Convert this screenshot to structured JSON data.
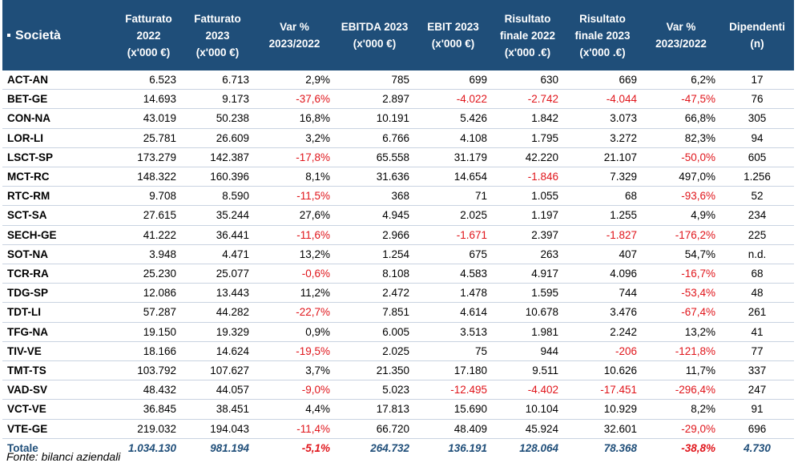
{
  "header": {
    "col_name": "Società",
    "cols": [
      [
        "Fatturato",
        "2022",
        "(x'000 €)"
      ],
      [
        "Fatturato",
        "2023",
        "(x'000 €)"
      ],
      [
        "Var %",
        "2023/2022"
      ],
      [
        "EBITDA 2023",
        "(x'000 €)"
      ],
      [
        "EBIT  2023",
        "(x'000 €)"
      ],
      [
        "Risultato",
        "finale 2022",
        "(x'000 .€)"
      ],
      [
        "Risultato",
        "finale  2023",
        "(x'000 .€)"
      ],
      [
        "Var %",
        "2023/2022"
      ],
      [
        "Dipendenti",
        "(n)"
      ]
    ]
  },
  "rows": [
    [
      "ACT-AN",
      "6.523",
      "6.713",
      "2,9%",
      "785",
      "699",
      "630",
      "669",
      "6,2%",
      "17"
    ],
    [
      "BET-GE",
      "14.693",
      "9.173",
      "-37,6%",
      "2.897",
      "-4.022",
      "-2.742",
      "-4.044",
      "-47,5%",
      "76"
    ],
    [
      "CON-NA",
      "43.019",
      "50.238",
      "16,8%",
      "10.191",
      "5.426",
      "1.842",
      "3.073",
      "66,8%",
      "305"
    ],
    [
      "LOR-LI",
      "25.781",
      "26.609",
      "3,2%",
      "6.766",
      "4.108",
      "1.795",
      "3.272",
      "82,3%",
      "94"
    ],
    [
      "LSCT-SP",
      "173.279",
      "142.387",
      "-17,8%",
      "65.558",
      "31.179",
      "42.220",
      "21.107",
      "-50,0%",
      "605"
    ],
    [
      "MCT-RC",
      "148.322",
      "160.396",
      "8,1%",
      "31.636",
      "14.654",
      "-1.846",
      "7.329",
      "497,0%",
      "1.256"
    ],
    [
      "RTC-RM",
      "9.708",
      "8.590",
      "-11,5%",
      "368",
      "71",
      "1.055",
      "68",
      "-93,6%",
      "52"
    ],
    [
      "SCT-SA",
      "27.615",
      "35.244",
      "27,6%",
      "4.945",
      "2.025",
      "1.197",
      "1.255",
      "4,9%",
      "234"
    ],
    [
      "SECH-GE",
      "41.222",
      "36.441",
      "-11,6%",
      "2.966",
      "-1.671",
      "2.397",
      "-1.827",
      "-176,2%",
      "225"
    ],
    [
      "SOT-NA",
      "3.948",
      "4.471",
      "13,2%",
      "1.254",
      "675",
      "263",
      "407",
      "54,7%",
      "n.d."
    ],
    [
      "TCR-RA",
      "25.230",
      "25.077",
      "-0,6%",
      "8.108",
      "4.583",
      "4.917",
      "4.096",
      "-16,7%",
      "68"
    ],
    [
      "TDG-SP",
      "12.086",
      "13.443",
      "11,2%",
      "2.472",
      "1.478",
      "1.595",
      "744",
      "-53,4%",
      "48"
    ],
    [
      "TDT-LI",
      "57.287",
      "44.282",
      "-22,7%",
      "7.851",
      "4.614",
      "10.678",
      "3.476",
      "-67,4%",
      "261"
    ],
    [
      "TFG-NA",
      "19.150",
      "19.329",
      "0,9%",
      "6.005",
      "3.513",
      "1.981",
      "2.242",
      "13,2%",
      "41"
    ],
    [
      "TIV-VE",
      "18.166",
      "14.624",
      "-19,5%",
      "2.025",
      "75",
      "944",
      "-206",
      "-121,8%",
      "77"
    ],
    [
      "TMT-TS",
      "103.792",
      "107.627",
      "3,7%",
      "21.350",
      "17.180",
      "9.511",
      "10.626",
      "11,7%",
      "337"
    ],
    [
      "VAD-SV",
      "48.432",
      "44.057",
      "-9,0%",
      "5.023",
      "-12.495",
      "-4.402",
      "-17.451",
      "-296,4%",
      "247"
    ],
    [
      "VCT-VE",
      "36.845",
      "38.451",
      "4,4%",
      "17.813",
      "15.690",
      "10.104",
      "10.929",
      "8,2%",
      "91"
    ],
    [
      "VTE-GE",
      "219.032",
      "194.043",
      "-11,4%",
      "66.720",
      "48.409",
      "45.924",
      "32.601",
      "-29,0%",
      "696"
    ]
  ],
  "total": [
    "Totale",
    "1.034.130",
    "981.194",
    "-5,1%",
    "264.732",
    "136.191",
    "128.064",
    "78.368",
    "-38,8%",
    "4.730"
  ],
  "source": "Fonte: bilanci aziendali",
  "colors": {
    "header_bg": "#1f4e79",
    "negative": "#e0151b",
    "total": "#1f4e79"
  }
}
